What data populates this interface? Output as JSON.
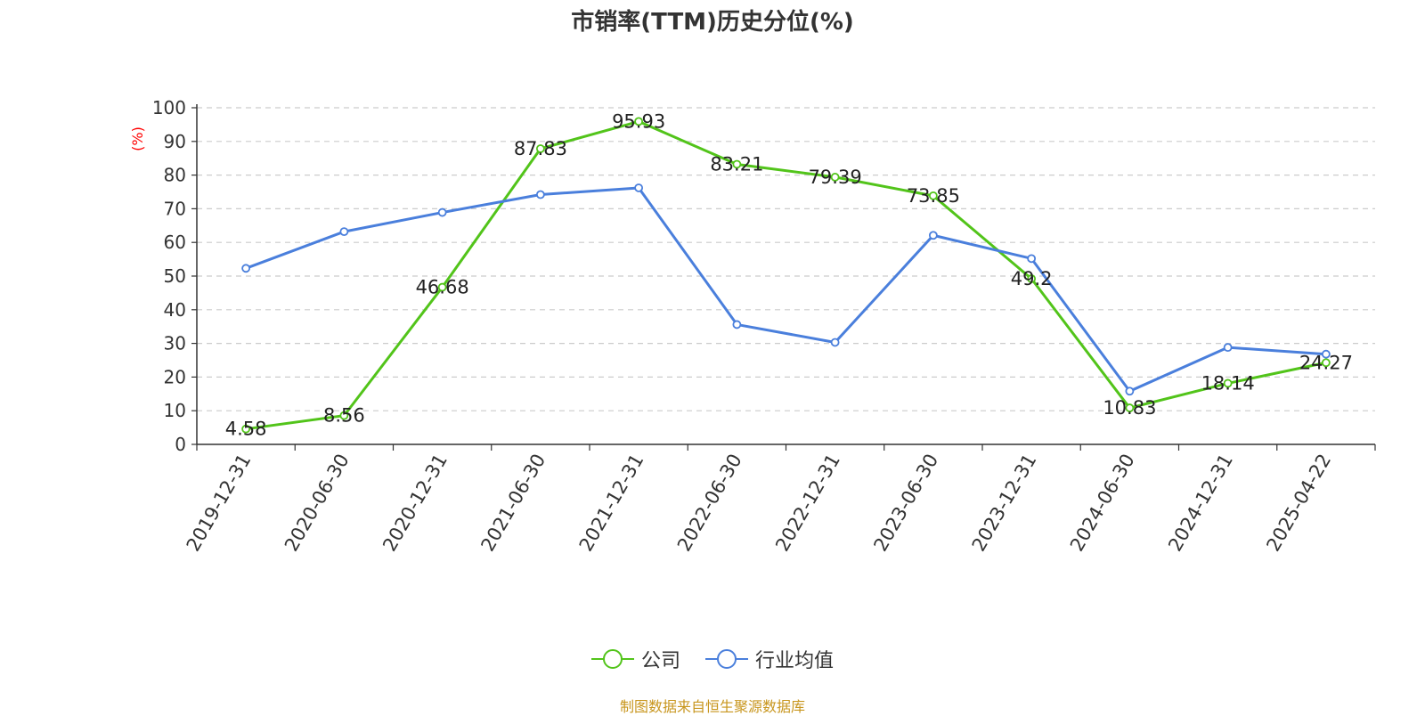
{
  "chart_data": {
    "type": "line",
    "title": "市销率(TTM)历史分位(%)",
    "ylabel": "(%)",
    "xlabel": "",
    "categories": [
      "2019-12-31",
      "2020-06-30",
      "2020-12-31",
      "2021-06-30",
      "2021-12-31",
      "2022-06-30",
      "2022-12-31",
      "2023-06-30",
      "2023-12-31",
      "2024-06-30",
      "2024-12-31",
      "2025-04-22"
    ],
    "ylim": [
      0,
      100
    ],
    "yticks": [
      0,
      10,
      20,
      30,
      40,
      50,
      60,
      70,
      80,
      90,
      100
    ],
    "grid": true,
    "legend_position": "bottom",
    "series": [
      {
        "name": "公司",
        "color": "#52c41a",
        "values": [
          4.58,
          8.56,
          46.68,
          87.83,
          95.93,
          83.21,
          79.39,
          73.85,
          49.2,
          10.83,
          18.14,
          24.27
        ],
        "labels": [
          "4.58",
          "8.56",
          "46.68",
          "87.83",
          "95.93",
          "83.21",
          "79.39",
          "73.85",
          "49.2",
          "10.83",
          "18.14",
          "24.27"
        ]
      },
      {
        "name": "行业均值",
        "color": "#4a7fdc",
        "values": [
          52.3,
          63.2,
          68.9,
          74.2,
          76.2,
          35.6,
          30.3,
          62.1,
          55.2,
          15.8,
          28.8,
          26.8
        ]
      }
    ]
  },
  "footer": {
    "source": "制图数据来自恒生聚源数据库"
  }
}
